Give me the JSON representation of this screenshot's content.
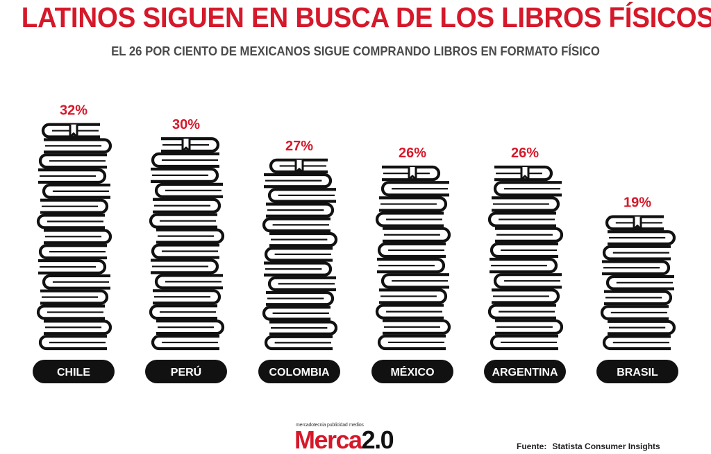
{
  "header": {
    "title": "LATINOS SIGUEN EN BUSCA DE LOS LIBROS FÍSICOS",
    "subtitle": "EL 26 POR CIENTO DE MEXICANOS SIGUE COMPRANDO LIBROS EN FORMATO FÍSICO"
  },
  "chart_data": {
    "type": "bar",
    "title": "LATINOS SIGUEN EN BUSCA DE LOS LIBROS FÍSICOS",
    "subtitle": "EL 26 POR CIENTO DE MEXICANOS SIGUE COMPRANDO LIBROS EN FORMATO FÍSICO",
    "categories": [
      "CHILE",
      "PERÚ",
      "COLOMBIA",
      "MÉXICO",
      "ARGENTINA",
      "BRASIL"
    ],
    "values": [
      32,
      30,
      27,
      26,
      26,
      19
    ],
    "value_labels": [
      "32%",
      "30%",
      "27%",
      "26%",
      "26%",
      "19%"
    ],
    "unit": "%",
    "mark": "stack-of-books-icon",
    "colors": {
      "accent": "#d5182a",
      "book_stroke": "#111111",
      "label_pill": "#111111",
      "label_text": "#ffffff",
      "subtitle": "#4a4a4a"
    }
  },
  "footer": {
    "logo_tagline": "mercadotecnia publicidad medios",
    "logo_word": "Merca",
    "logo_version": "2.0",
    "source_label": "Fuente:",
    "source_text": "Statista Consumer Insights"
  }
}
